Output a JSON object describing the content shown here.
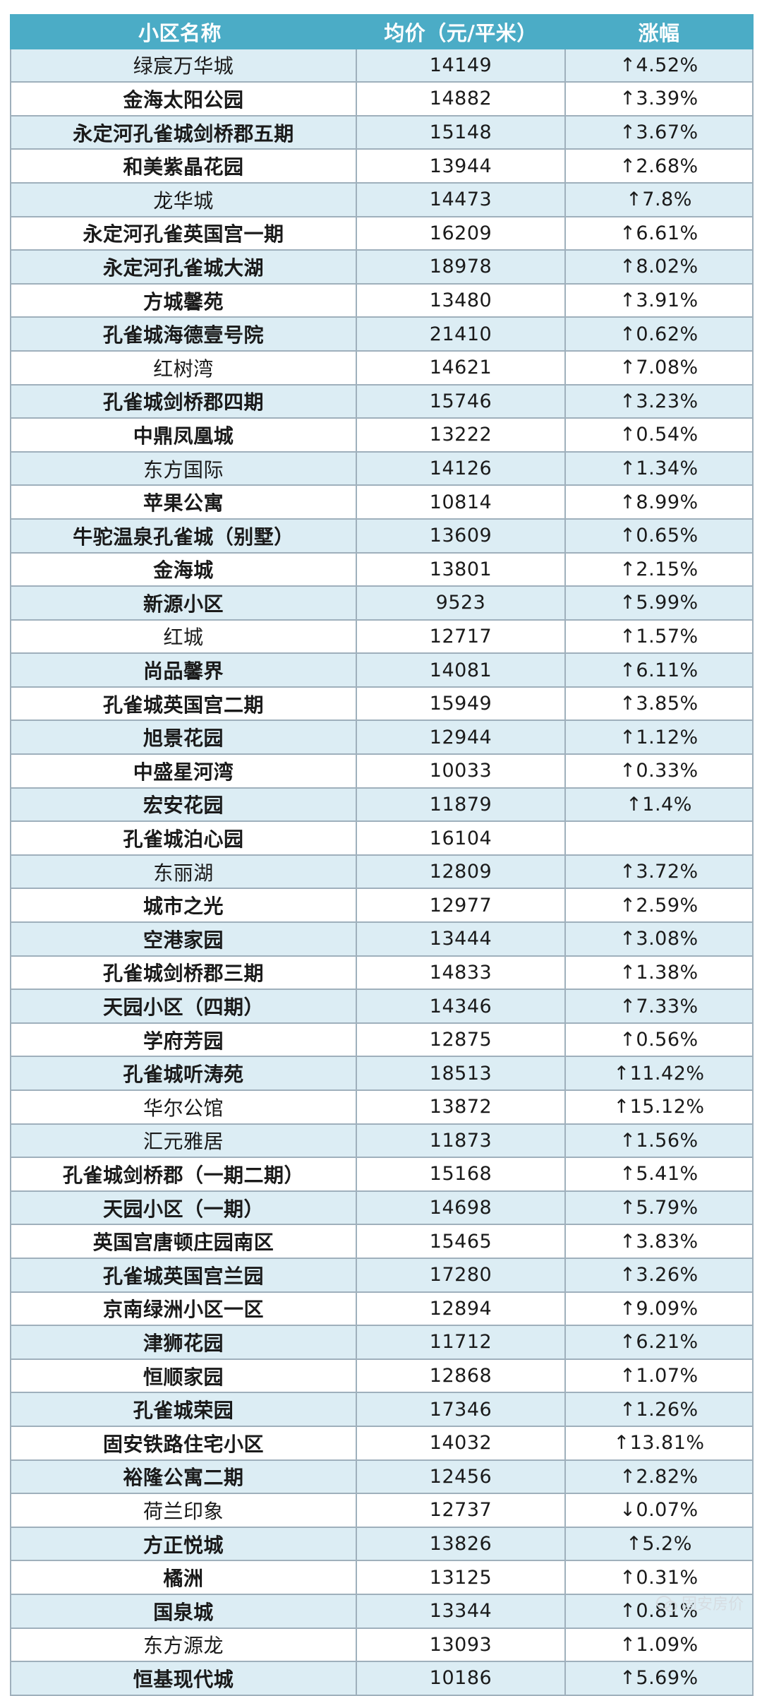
{
  "table": {
    "headers": [
      "小区名称",
      "均价（元/平米）",
      "涨幅"
    ],
    "rows": [
      {
        "name": "绿宸万华城",
        "price": "14149",
        "change": "↑4.52%",
        "bold": false
      },
      {
        "name": "金海太阳公园",
        "price": "14882",
        "change": "↑3.39%",
        "bold": true
      },
      {
        "name": "永定河孔雀城剑桥郡五期",
        "price": "15148",
        "change": "↑3.67%",
        "bold": true
      },
      {
        "name": "和美紫晶花园",
        "price": "13944",
        "change": "↑2.68%",
        "bold": true
      },
      {
        "name": "龙华城",
        "price": "14473",
        "change": "↑7.8%",
        "bold": false
      },
      {
        "name": "永定河孔雀英国宫一期",
        "price": "16209",
        "change": "↑6.61%",
        "bold": true
      },
      {
        "name": "永定河孔雀城大湖",
        "price": "18978",
        "change": "↑8.02%",
        "bold": true
      },
      {
        "name": "方城馨苑",
        "price": "13480",
        "change": "↑3.91%",
        "bold": true
      },
      {
        "name": "孔雀城海德壹号院",
        "price": "21410",
        "change": "↑0.62%",
        "bold": true
      },
      {
        "name": "红树湾",
        "price": "14621",
        "change": "↑7.08%",
        "bold": false
      },
      {
        "name": "孔雀城剑桥郡四期",
        "price": "15746",
        "change": "↑3.23%",
        "bold": true
      },
      {
        "name": "中鼎凤凰城",
        "price": "13222",
        "change": "↑0.54%",
        "bold": true
      },
      {
        "name": "东方国际",
        "price": "14126",
        "change": "↑1.34%",
        "bold": false
      },
      {
        "name": "苹果公寓",
        "price": "10814",
        "change": "↑8.99%",
        "bold": true
      },
      {
        "name": "牛驼温泉孔雀城（别墅）",
        "price": "13609",
        "change": "↑0.65%",
        "bold": true
      },
      {
        "name": "金海城",
        "price": "13801",
        "change": "↑2.15%",
        "bold": true
      },
      {
        "name": "新源小区",
        "price": "9523",
        "change": "↑5.99%",
        "bold": true
      },
      {
        "name": "红城",
        "price": "12717",
        "change": "↑1.57%",
        "bold": false
      },
      {
        "name": "尚品馨界",
        "price": "14081",
        "change": "↑6.11%",
        "bold": true
      },
      {
        "name": "孔雀城英国宫二期",
        "price": "15949",
        "change": "↑3.85%",
        "bold": true
      },
      {
        "name": "旭景花园",
        "price": "12944",
        "change": "↑1.12%",
        "bold": true
      },
      {
        "name": "中盛星河湾",
        "price": "10033",
        "change": "↑0.33%",
        "bold": true
      },
      {
        "name": "宏安花园",
        "price": "11879",
        "change": "↑1.4%",
        "bold": true
      },
      {
        "name": "孔雀城泊心园",
        "price": "16104",
        "change": "",
        "bold": true
      },
      {
        "name": "东丽湖",
        "price": "12809",
        "change": "↑3.72%",
        "bold": false
      },
      {
        "name": "城市之光",
        "price": "12977",
        "change": "↑2.59%",
        "bold": true
      },
      {
        "name": "空港家园",
        "price": "13444",
        "change": "↑3.08%",
        "bold": true
      },
      {
        "name": "孔雀城剑桥郡三期",
        "price": "14833",
        "change": "↑1.38%",
        "bold": true
      },
      {
        "name": "天园小区（四期）",
        "price": "14346",
        "change": "↑7.33%",
        "bold": true
      },
      {
        "name": "学府芳园",
        "price": "12875",
        "change": "↑0.56%",
        "bold": true
      },
      {
        "name": "孔雀城听涛苑",
        "price": "18513",
        "change": "↑11.42%",
        "bold": true
      },
      {
        "name": "华尔公馆",
        "price": "13872",
        "change": "↑15.12%",
        "bold": false
      },
      {
        "name": "汇元雅居",
        "price": "11873",
        "change": "↑1.56%",
        "bold": false
      },
      {
        "name": "孔雀城剑桥郡（一期二期）",
        "price": "15168",
        "change": "↑5.41%",
        "bold": true
      },
      {
        "name": "天园小区（一期）",
        "price": "14698",
        "change": "↑5.79%",
        "bold": true
      },
      {
        "name": "英国宫唐顿庄园南区",
        "price": "15465",
        "change": "↑3.83%",
        "bold": true
      },
      {
        "name": "孔雀城英国宫兰园",
        "price": "17280",
        "change": "↑3.26%",
        "bold": true
      },
      {
        "name": "京南绿洲小区一区",
        "price": "12894",
        "change": "↑9.09%",
        "bold": true
      },
      {
        "name": "津狮花园",
        "price": "11712",
        "change": "↑6.21%",
        "bold": true
      },
      {
        "name": "恒顺家园",
        "price": "12868",
        "change": "↑1.07%",
        "bold": true
      },
      {
        "name": "孔雀城荣园",
        "price": "17346",
        "change": "↑1.26%",
        "bold": true
      },
      {
        "name": "固安铁路住宅小区",
        "price": "14032",
        "change": "↑13.81%",
        "bold": true
      },
      {
        "name": "裕隆公寓二期",
        "price": "12456",
        "change": "↑2.82%",
        "bold": true
      },
      {
        "name": "荷兰印象",
        "price": "12737",
        "change": "↓0.07%",
        "bold": false
      },
      {
        "name": "方正悦城",
        "price": "13826",
        "change": "↑5.2%",
        "bold": true
      },
      {
        "name": "橘洲",
        "price": "13125",
        "change": "↑0.31%",
        "bold": true
      },
      {
        "name": "国泉城",
        "price": "13344",
        "change": "↑0.81%",
        "bold": true
      },
      {
        "name": "东方源龙",
        "price": "13093",
        "change": "↑1.09%",
        "bold": false
      },
      {
        "name": "恒基现代城",
        "price": "10186",
        "change": "↑5.69%",
        "bold": true
      }
    ]
  },
  "watermark": {
    "text": "固安房价",
    "icon": "wechat-logo-icon"
  }
}
